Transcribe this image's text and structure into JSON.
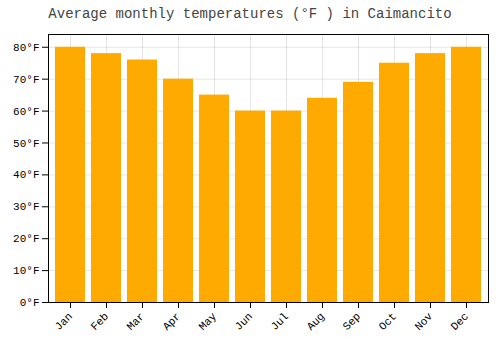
{
  "chart_data": {
    "type": "bar",
    "title": "Average monthly temperatures (°F ) in Caimancito",
    "categories": [
      "Jan",
      "Feb",
      "Mar",
      "Apr",
      "May",
      "Jun",
      "Jul",
      "Aug",
      "Sep",
      "Oct",
      "Nov",
      "Dec"
    ],
    "values": [
      80,
      78,
      76,
      70,
      65,
      60,
      60,
      64,
      69,
      75,
      78,
      80
    ],
    "color": "#FFAA00",
    "ylim": [
      0,
      84
    ],
    "yticks": [
      {
        "value": 0,
        "label": "0°F"
      },
      {
        "value": 10,
        "label": "10°F"
      },
      {
        "value": 20,
        "label": "20°F"
      },
      {
        "value": 30,
        "label": "30°F"
      },
      {
        "value": 40,
        "label": "40°F"
      },
      {
        "value": 50,
        "label": "50°F"
      },
      {
        "value": 60,
        "label": "60°F"
      },
      {
        "value": 70,
        "label": "70°F"
      },
      {
        "value": 80,
        "label": "80°F"
      }
    ],
    "grid": true
  }
}
